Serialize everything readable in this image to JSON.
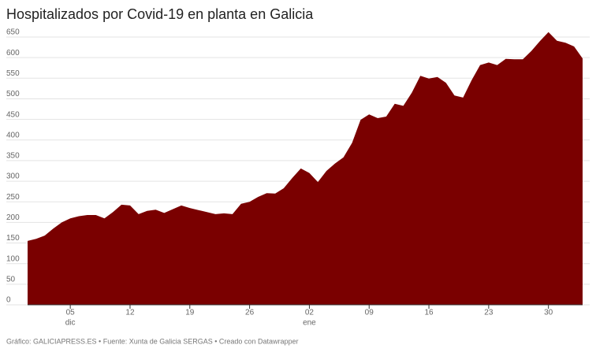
{
  "chart_data": {
    "type": "area",
    "title": "Hospitalizados por Covid-19 en planta en Galicia",
    "footer": "Gráfico: GALICIAPRESS.ES • Fuente: Xunta de Galicia SERGAS • Creado con Datawrapper",
    "categories": [
      null,
      null,
      null,
      null,
      null,
      "05",
      null,
      null,
      null,
      null,
      null,
      null,
      "12",
      null,
      null,
      null,
      null,
      null,
      null,
      "19",
      null,
      null,
      null,
      null,
      null,
      null,
      "26",
      null,
      null,
      null,
      null,
      null,
      null,
      "02",
      null,
      null,
      null,
      null,
      null,
      null,
      "09",
      null,
      null,
      null,
      null,
      null,
      null,
      "16",
      null,
      null,
      null,
      null,
      null,
      null,
      "23",
      null,
      null,
      null,
      null,
      null,
      null,
      "30",
      null,
      null,
      null,
      null
    ],
    "sublabels": [
      null,
      null,
      null,
      null,
      null,
      "dic",
      null,
      null,
      null,
      null,
      null,
      null,
      null,
      null,
      null,
      null,
      null,
      null,
      null,
      null,
      null,
      null,
      null,
      null,
      null,
      null,
      null,
      null,
      null,
      null,
      null,
      null,
      null,
      "ene",
      null,
      null,
      null,
      null,
      null,
      null,
      null,
      null,
      null,
      null,
      null,
      null,
      null,
      null,
      null,
      null,
      null,
      null,
      null,
      null,
      null,
      null,
      null,
      null,
      null,
      null,
      null,
      null,
      null,
      null,
      null,
      null
    ],
    "values": [
      155,
      160,
      168,
      185,
      200,
      210,
      215,
      218,
      218,
      210,
      225,
      243,
      241,
      220,
      228,
      231,
      223,
      232,
      241,
      235,
      230,
      225,
      220,
      222,
      220,
      245,
      250,
      262,
      271,
      270,
      283,
      308,
      331,
      320,
      298,
      325,
      343,
      358,
      393,
      449,
      462,
      453,
      457,
      488,
      483,
      515,
      556,
      549,
      553,
      539,
      508,
      503,
      545,
      582,
      588,
      582,
      597,
      596,
      596,
      616,
      640,
      662,
      641,
      636,
      627,
      598
    ],
    "color": "#7a0000",
    "ylim": [
      0,
      650
    ],
    "yticks": [
      0,
      50,
      100,
      150,
      200,
      250,
      300,
      350,
      400,
      450,
      500,
      550,
      600,
      650
    ],
    "grid": true
  }
}
